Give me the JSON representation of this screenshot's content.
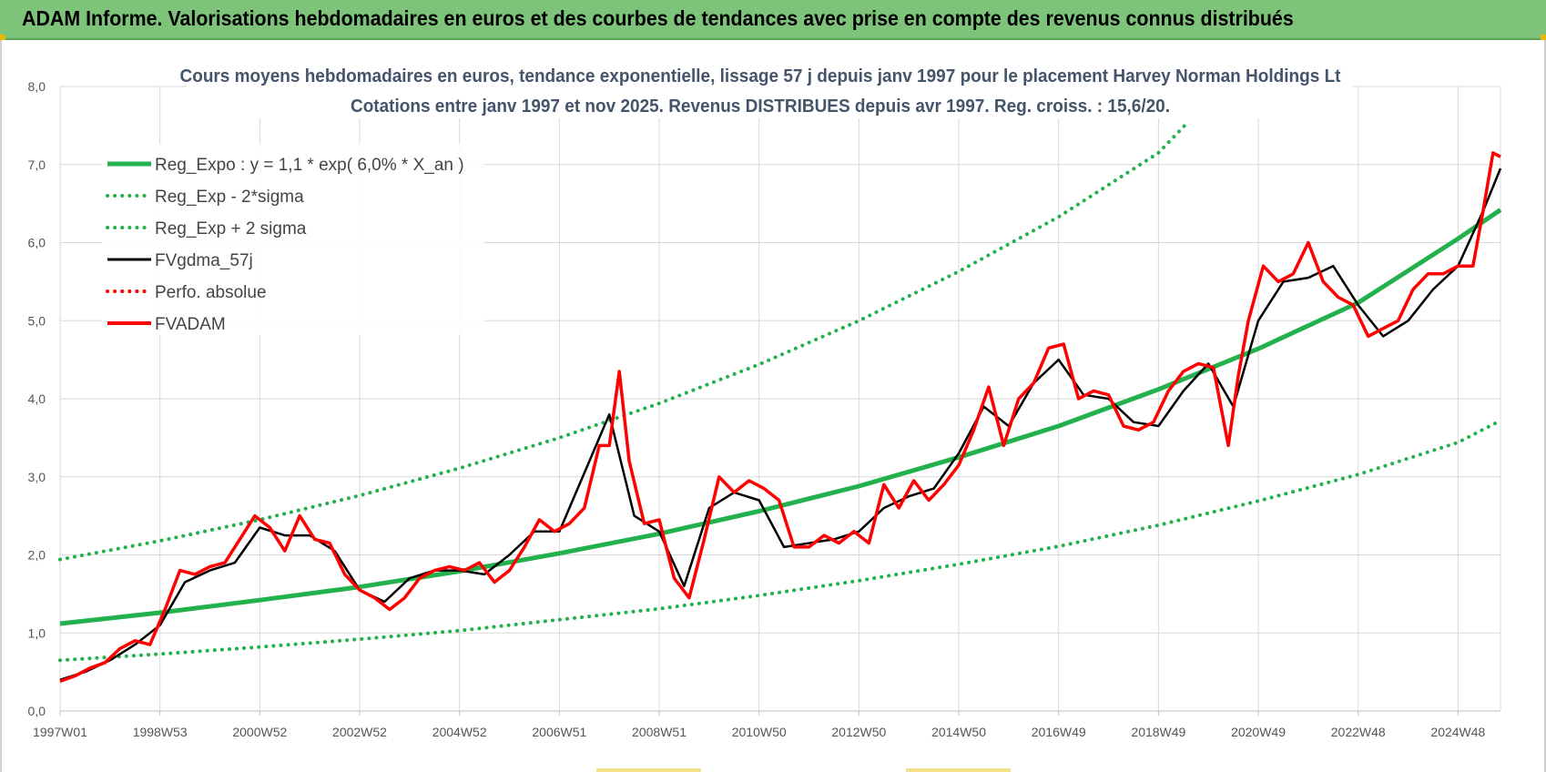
{
  "header": {
    "title": "ADAM Informe. Valorisations hebdomadaires en euros et des courbes de tendances avec prise en compte des revenus connus distribués"
  },
  "colors": {
    "header_bg": "#7dc47a",
    "reg": "#22b14c",
    "red": "#ff0000",
    "black": "#000000",
    "title": "#44546a"
  },
  "chart_data": {
    "type": "line",
    "title": "Cours moyens hebdomadaires en euros, tendance exponentielle, lissage 57 j depuis janv 1997 pour le placement Harvey Norman Holdings Lt",
    "subtitle": "Cotations entre janv 1997 et nov 2025. Revenus DISTRIBUES depuis avr 1997. Reg. croiss. : 15,6/20.",
    "ylim": [
      0,
      8
    ],
    "yticks": [
      "0,0",
      "1,0",
      "2,0",
      "3,0",
      "4,0",
      "5,0",
      "6,0",
      "7,0",
      "8,0"
    ],
    "xlim": [
      1997.0,
      2025.85
    ],
    "xticks": [
      {
        "label": "1997W01",
        "x": 1997.0
      },
      {
        "label": "1998W53",
        "x": 1999.0
      },
      {
        "label": "2000W52",
        "x": 2001.0
      },
      {
        "label": "2002W52",
        "x": 2003.0
      },
      {
        "label": "2004W52",
        "x": 2005.0
      },
      {
        "label": "2006W51",
        "x": 2007.0
      },
      {
        "label": "2008W51",
        "x": 2009.0
      },
      {
        "label": "2010W50",
        "x": 2011.0
      },
      {
        "label": "2012W50",
        "x": 2013.0
      },
      {
        "label": "2014W50",
        "x": 2015.0
      },
      {
        "label": "2016W49",
        "x": 2017.0
      },
      {
        "label": "2018W49",
        "x": 2019.0
      },
      {
        "label": "2020W49",
        "x": 2021.0
      },
      {
        "label": "2022W48",
        "x": 2023.0
      },
      {
        "label": "2024W48",
        "x": 2025.0
      }
    ],
    "grid": true,
    "legend_position": "top-left",
    "series": [
      {
        "name": "Reg_Expo : y = 1,1 * exp( 6,0% *  X_an )",
        "style": "solid-thick",
        "color": "#22b14c",
        "x": [
          1997,
          1999,
          2001,
          2003,
          2005,
          2007,
          2009,
          2011,
          2013,
          2015,
          2017,
          2019,
          2021,
          2023,
          2025,
          2025.85
        ],
        "y": [
          1.12,
          1.26,
          1.42,
          1.59,
          1.79,
          2.02,
          2.27,
          2.56,
          2.88,
          3.25,
          3.65,
          4.12,
          4.64,
          5.23,
          6.05,
          6.42
        ]
      },
      {
        "name": "Reg_Exp - 2*sigma",
        "style": "dotted",
        "color": "#22b14c",
        "x": [
          1997,
          1999,
          2001,
          2003,
          2005,
          2007,
          2009,
          2011,
          2013,
          2015,
          2017,
          2019,
          2021,
          2023,
          2025,
          2025.85
        ],
        "y": [
          0.65,
          0.73,
          0.82,
          0.92,
          1.03,
          1.17,
          1.31,
          1.48,
          1.67,
          1.88,
          2.11,
          2.38,
          2.69,
          3.03,
          3.44,
          3.72
        ]
      },
      {
        "name": "Reg_Exp + 2 sigma",
        "style": "dotted",
        "color": "#22b14c",
        "x": [
          1997,
          1999,
          2001,
          2003,
          2005,
          2007,
          2009,
          2011,
          2013,
          2015,
          2017,
          2019,
          2019.6
        ],
        "y": [
          1.94,
          2.18,
          2.45,
          2.76,
          3.11,
          3.5,
          3.94,
          4.44,
          5.0,
          5.63,
          6.33,
          7.15,
          7.55
        ]
      },
      {
        "name": "FVgdma_57j",
        "style": "solid",
        "color": "#000000",
        "x": [
          1997.0,
          1997.5,
          1998.0,
          1998.5,
          1999.0,
          1999.5,
          2000.0,
          2000.5,
          2001.0,
          2001.5,
          2002.0,
          2002.5,
          2003.0,
          2003.5,
          2004.0,
          2004.5,
          2005.0,
          2005.5,
          2006.0,
          2006.5,
          2007.0,
          2007.5,
          2008.0,
          2008.5,
          2009.0,
          2009.5,
          2010.0,
          2010.5,
          2011.0,
          2011.5,
          2012.0,
          2012.5,
          2013.0,
          2013.5,
          2014.0,
          2014.5,
          2015.0,
          2015.5,
          2016.0,
          2016.5,
          2017.0,
          2017.5,
          2018.0,
          2018.5,
          2019.0,
          2019.5,
          2020.0,
          2020.5,
          2021.0,
          2021.5,
          2022.0,
          2022.5,
          2023.0,
          2023.5,
          2024.0,
          2024.5,
          2025.0,
          2025.5,
          2025.85
        ],
        "y": [
          0.4,
          0.5,
          0.65,
          0.85,
          1.1,
          1.65,
          1.8,
          1.9,
          2.35,
          2.25,
          2.25,
          2.05,
          1.55,
          1.4,
          1.7,
          1.8,
          1.8,
          1.75,
          2.0,
          2.3,
          2.3,
          3.05,
          3.8,
          2.5,
          2.3,
          1.6,
          2.6,
          2.8,
          2.7,
          2.1,
          2.15,
          2.2,
          2.3,
          2.6,
          2.75,
          2.85,
          3.3,
          3.9,
          3.65,
          4.2,
          4.5,
          4.05,
          4.0,
          3.7,
          3.65,
          4.1,
          4.45,
          3.9,
          5.0,
          5.5,
          5.55,
          5.7,
          5.2,
          4.8,
          5.0,
          5.4,
          5.7,
          6.4,
          6.95
        ]
      },
      {
        "name": "Perfo. absolue",
        "style": "dotted",
        "color": "#ff0000",
        "x": [],
        "y": []
      },
      {
        "name": "FVADAM",
        "style": "solid-thick",
        "color": "#ff0000",
        "x": [
          1997.0,
          1997.3,
          1997.6,
          1997.9,
          1998.2,
          1998.5,
          1998.8,
          1999.1,
          1999.4,
          1999.7,
          2000.0,
          2000.3,
          2000.6,
          2000.9,
          2001.2,
          2001.5,
          2001.8,
          2002.1,
          2002.4,
          2002.7,
          2003.0,
          2003.3,
          2003.6,
          2003.9,
          2004.2,
          2004.5,
          2004.8,
          2005.1,
          2005.4,
          2005.7,
          2006.0,
          2006.3,
          2006.6,
          2006.9,
          2007.2,
          2007.5,
          2007.8,
          2008.0,
          2008.2,
          2008.4,
          2008.7,
          2009.0,
          2009.3,
          2009.6,
          2009.9,
          2010.2,
          2010.5,
          2010.8,
          2011.1,
          2011.4,
          2011.7,
          2012.0,
          2012.3,
          2012.6,
          2012.9,
          2013.2,
          2013.5,
          2013.8,
          2014.1,
          2014.4,
          2014.7,
          2015.0,
          2015.3,
          2015.6,
          2015.9,
          2016.2,
          2016.5,
          2016.8,
          2017.1,
          2017.4,
          2017.7,
          2018.0,
          2018.3,
          2018.6,
          2018.9,
          2019.2,
          2019.5,
          2019.8,
          2020.1,
          2020.4,
          2020.6,
          2020.8,
          2021.1,
          2021.4,
          2021.7,
          2022.0,
          2022.3,
          2022.6,
          2022.9,
          2023.2,
          2023.5,
          2023.8,
          2024.1,
          2024.4,
          2024.7,
          2025.0,
          2025.3,
          2025.5,
          2025.7,
          2025.85
        ],
        "y": [
          0.38,
          0.45,
          0.55,
          0.62,
          0.8,
          0.9,
          0.85,
          1.3,
          1.8,
          1.75,
          1.85,
          1.9,
          2.2,
          2.5,
          2.35,
          2.05,
          2.5,
          2.2,
          2.15,
          1.75,
          1.55,
          1.45,
          1.3,
          1.45,
          1.7,
          1.8,
          1.85,
          1.8,
          1.9,
          1.65,
          1.8,
          2.1,
          2.45,
          2.3,
          2.4,
          2.6,
          3.4,
          3.4,
          4.35,
          3.2,
          2.4,
          2.45,
          1.7,
          1.45,
          2.2,
          3.0,
          2.8,
          2.95,
          2.85,
          2.7,
          2.1,
          2.1,
          2.25,
          2.15,
          2.3,
          2.15,
          2.9,
          2.6,
          2.95,
          2.7,
          2.9,
          3.15,
          3.6,
          4.15,
          3.4,
          4.0,
          4.2,
          4.65,
          4.7,
          4.0,
          4.1,
          4.05,
          3.65,
          3.6,
          3.7,
          4.1,
          4.35,
          4.45,
          4.4,
          3.4,
          4.3,
          5.0,
          5.7,
          5.5,
          5.6,
          6.0,
          5.5,
          5.3,
          5.2,
          4.8,
          4.9,
          5.0,
          5.4,
          5.6,
          5.6,
          5.7,
          5.7,
          6.4,
          7.15,
          7.1
        ]
      }
    ]
  }
}
